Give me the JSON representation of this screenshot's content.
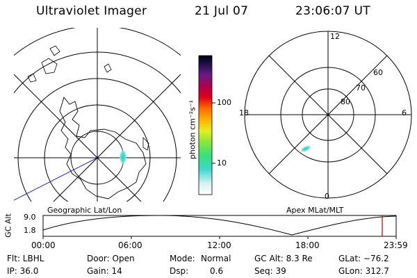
{
  "header": {
    "instrument": "Ultraviolet Imager",
    "date": "21 Jul 07",
    "time": "23:06:07 UT"
  },
  "colorbar": {
    "label": "photon cm⁻²s⁻¹",
    "ticks": [
      "100",
      "10"
    ]
  },
  "geographic_map": {
    "label": "Geographic Lat/Lon"
  },
  "apex_map": {
    "label": "Apex MLat/MLT",
    "mlt_labels": {
      "top": "12",
      "left": "18",
      "right": "6",
      "bottom": "0"
    },
    "lat_labels": [
      "60",
      "70",
      "80"
    ]
  },
  "altitude_plot": {
    "ylabel": "GC Alt",
    "yticks": [
      "9.0",
      "1.8"
    ],
    "xticks": [
      "00:00",
      "06:00",
      "12:00",
      "18:00",
      "23:59"
    ],
    "marker_color": "#cc0000"
  },
  "status": {
    "flt": "Flt: LBHL",
    "door": "Door: Open",
    "mode_label": "Mode:",
    "mode_value": "Normal",
    "gc_alt": "GC Alt: 8.3 Re",
    "glat": "GLat: −76.2",
    "ip": "IP: 36.0",
    "gain": "Gain: 14",
    "dsp_label": "Dsp:",
    "dsp_value": "0.6",
    "seq": "Seq: 39",
    "glon": "GLon: 312.7"
  }
}
